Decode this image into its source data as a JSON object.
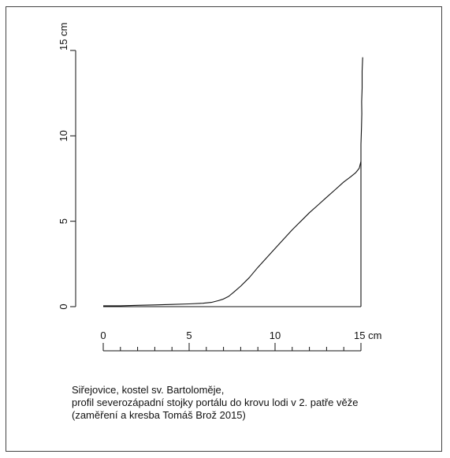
{
  "chart_data": {
    "type": "line",
    "title": "",
    "xlabel": "",
    "ylabel": "",
    "x_unit": "cm",
    "y_unit": "cm",
    "xlim": [
      0,
      15
    ],
    "ylim": [
      0,
      15
    ],
    "x_ticks": [
      0,
      5,
      10,
      15
    ],
    "y_ticks": [
      0,
      5,
      10,
      15
    ],
    "x_tick_labels": [
      "0",
      "5",
      "10",
      "15 cm"
    ],
    "y_tick_labels": [
      "0",
      "5",
      "10",
      "15 cm"
    ],
    "x_minor_step": 1,
    "grid": false,
    "series": [
      {
        "x": [
          0.0,
          1.0,
          2.0,
          3.0,
          4.0,
          5.0,
          5.8,
          6.3,
          6.7,
          7.0,
          7.3,
          7.6,
          8.0,
          8.5,
          9.0,
          9.5,
          10.0,
          10.5,
          11.0,
          11.5,
          12.0,
          12.5,
          13.0,
          13.5,
          14.0,
          14.4,
          14.7,
          14.9,
          15.0,
          15.0,
          15.03,
          15.05,
          15.04,
          15.07,
          15.07,
          15.1
        ],
        "y": [
          0.05,
          0.05,
          0.08,
          0.1,
          0.13,
          0.16,
          0.2,
          0.25,
          0.35,
          0.45,
          0.6,
          0.85,
          1.2,
          1.7,
          2.3,
          2.85,
          3.4,
          3.95,
          4.5,
          5.0,
          5.5,
          5.95,
          6.4,
          6.85,
          7.3,
          7.6,
          7.85,
          8.1,
          8.5,
          9.5,
          10.5,
          11.3,
          12.0,
          12.8,
          13.8,
          14.6
        ]
      }
    ],
    "closing_lines": [
      {
        "x": [
          0.0,
          15.0
        ],
        "y": [
          0.0,
          0.0
        ]
      },
      {
        "x": [
          15.0,
          15.0
        ],
        "y": [
          0.0,
          8.5
        ]
      }
    ]
  },
  "caption": {
    "line1": "Siřejovice, kostel sv. Bartoloměje,",
    "line2": "profil severozápadní stojky portálu do krovu lodi v 2. patře věže",
    "line3": "(zaměření a kresba Tomáš Brož 2015)"
  },
  "colors": {
    "stroke": "#111111",
    "frame": "#444444",
    "background": "#ffffff"
  }
}
